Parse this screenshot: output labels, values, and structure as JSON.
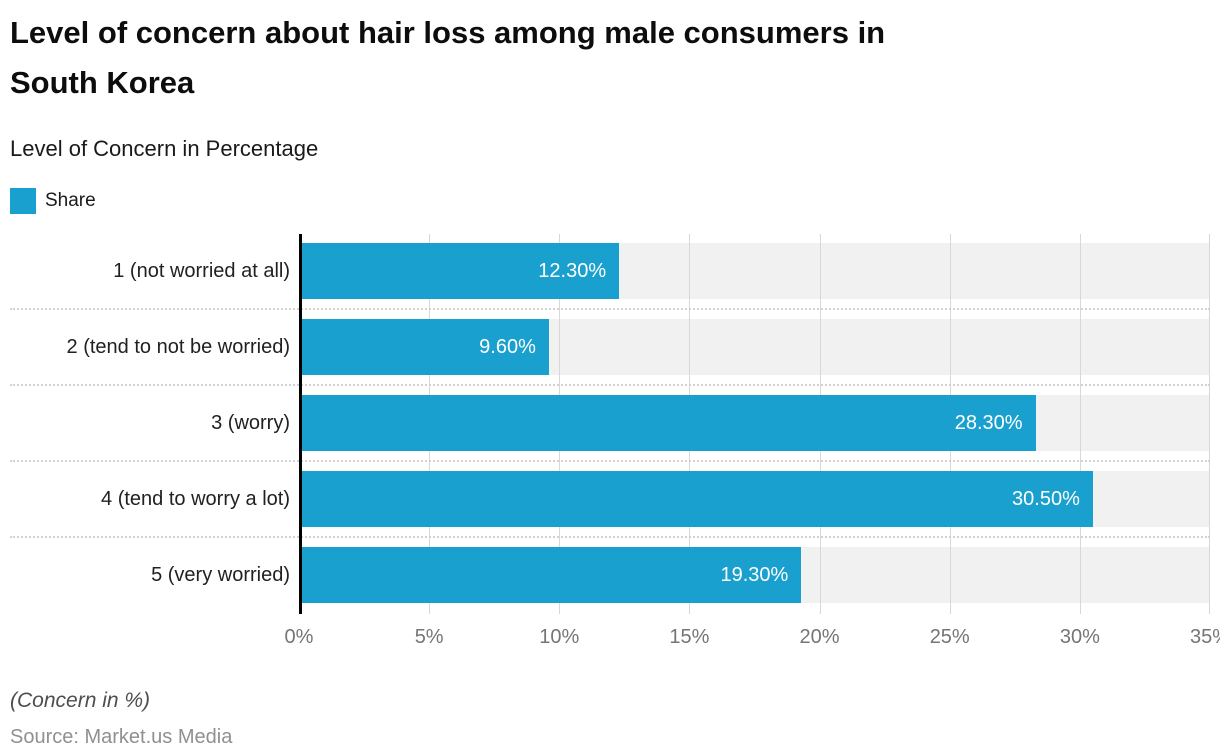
{
  "header": {
    "title_lines": [
      "Level of concern about hair loss among male consumers in",
      "South Korea"
    ],
    "subtitle": "Level of Concern in Percentage"
  },
  "legend": {
    "items": [
      {
        "label": "Share",
        "color": "#1aa0ce"
      }
    ]
  },
  "chart_data": {
    "type": "bar",
    "orientation": "horizontal",
    "title": "Level of concern about hair loss among male consumers in South Korea",
    "subtitle": "Level of Concern in Percentage",
    "series_name": "Share",
    "categories": [
      "1 (not worried at all)",
      "2 (tend to not be worried)",
      "3 (worry)",
      "4 (tend to worry a lot)",
      "5 (very worried)"
    ],
    "values": [
      12.3,
      9.6,
      28.3,
      30.5,
      19.3
    ],
    "display_values": [
      "12.30%",
      "9.60%",
      "28.30%",
      "30.50%",
      "19.30%"
    ],
    "xlabel": "",
    "ylabel": "",
    "xlim": [
      0,
      35
    ],
    "tick_step": 5,
    "tick_labels": [
      "0%",
      "5%",
      "10%",
      "15%",
      "20%",
      "25%",
      "30%",
      "35%"
    ],
    "grid": true,
    "legend_position": "top-left",
    "bar_color": "#1aa0ce",
    "track_color": "#f1f1f1"
  },
  "footer": {
    "note": "(Concern in %)",
    "source": "Source: Market.us Media"
  }
}
